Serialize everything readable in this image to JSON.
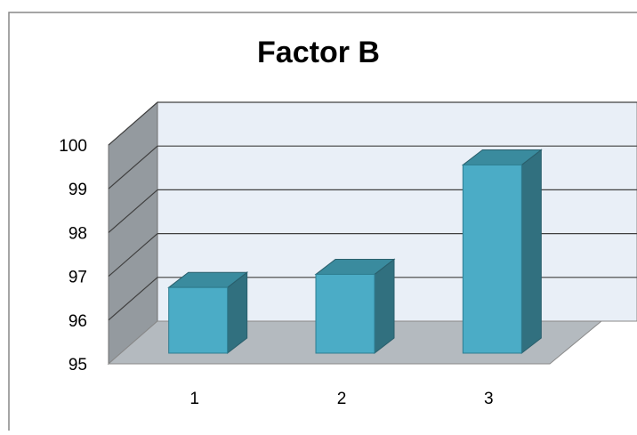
{
  "chart_data": {
    "type": "bar",
    "title": "Factor B",
    "categories": [
      "1",
      "2",
      "3"
    ],
    "values": [
      96.5,
      96.8,
      99.3
    ],
    "ylim": [
      95,
      100
    ],
    "yticks": [
      95,
      96,
      97,
      98,
      99,
      100
    ],
    "grid": true,
    "legend": "none",
    "colors": {
      "bar_front": "#4bacc6",
      "bar_side": "#31707f",
      "bar_top": "#3a8b9e",
      "back_wall": "#e9eff7",
      "side_wall": "#949a9f",
      "floor": "#b4babf",
      "gridline": "#404040"
    }
  }
}
